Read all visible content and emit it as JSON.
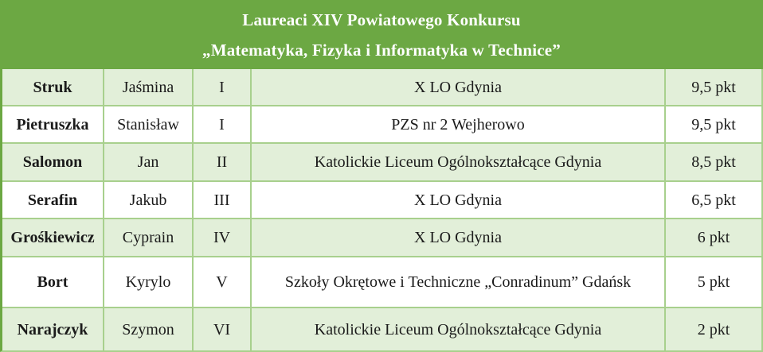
{
  "header": {
    "title_line1": "Laureaci XIV Powiatowego Konkursu",
    "title_line2": "„Matematyka, Fizyka i Informatyka w Technice”"
  },
  "table": {
    "rows": [
      {
        "last_name": "Struk",
        "first_name": "Jaśmina",
        "place": "I",
        "school": "X LO Gdynia",
        "score": "9,5 pkt"
      },
      {
        "last_name": "Pietruszka",
        "first_name": "Stanisław",
        "place": "I",
        "school": "PZS nr 2 Wejherowo",
        "score": "9,5 pkt"
      },
      {
        "last_name": "Salomon",
        "first_name": "Jan",
        "place": "II",
        "school": "Katolickie Liceum Ogólnokształcące Gdynia",
        "score": "8,5 pkt"
      },
      {
        "last_name": "Serafin",
        "first_name": "Jakub",
        "place": "III",
        "school": "X LO Gdynia",
        "score": "6,5 pkt"
      },
      {
        "last_name": "Grośkiewicz",
        "first_name": "Cyprain",
        "place": "IV",
        "school": "X LO Gdynia",
        "score": "6 pkt"
      },
      {
        "last_name": "Bort",
        "first_name": "Kyrylo",
        "place": "V",
        "school": "Szkoły Okrętowe i Techniczne „Conradinum” Gdańsk",
        "score": "5 pkt"
      },
      {
        "last_name": "Narajczyk",
        "first_name": "Szymon",
        "place": "VI",
        "school": "Katolickie Liceum Ogólnokształcące Gdynia",
        "score": "2 pkt"
      }
    ]
  },
  "colors": {
    "header_background": "#6ca843",
    "header_text": "#ffffff",
    "row_alternate_background": "#e2efd9",
    "row_background": "#ffffff",
    "border": "#a8d08d",
    "body_text": "#1b1b1b"
  }
}
